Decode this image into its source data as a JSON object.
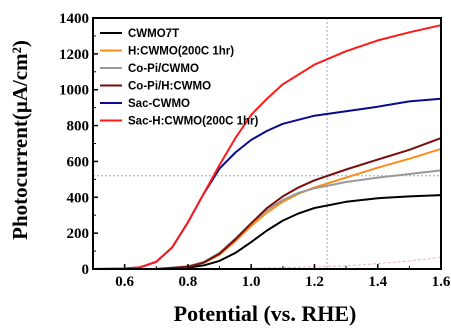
{
  "chart_data": {
    "type": "line",
    "xlabel": "Potential (vs. RHE)",
    "ylabel": "Photocurrent(μA/cm²)",
    "xlim": [
      0.5,
      1.6
    ],
    "ylim": [
      0,
      1400
    ],
    "xticks": [
      0.6,
      0.8,
      1.0,
      1.2,
      1.4,
      1.6
    ],
    "xtick_labels": [
      "0.6",
      "0.8",
      "1.0",
      "1.2",
      "1.4",
      "1.6"
    ],
    "yticks": [
      0,
      200,
      400,
      600,
      800,
      1000,
      1200,
      1400
    ],
    "ytick_labels": [
      "0",
      "200",
      "400",
      "600",
      "800",
      "1000",
      "1200",
      "1400"
    ],
    "grid": false,
    "legend_position": "top-left",
    "series": [
      {
        "name": "CWMO7T",
        "color": "#000000",
        "x": [
          0.5,
          0.6,
          0.7,
          0.8,
          0.85,
          0.9,
          0.95,
          1.0,
          1.05,
          1.1,
          1.15,
          1.2,
          1.3,
          1.4,
          1.5,
          1.6
        ],
        "y": [
          0,
          0,
          0,
          8,
          20,
          45,
          90,
          150,
          215,
          270,
          310,
          340,
          375,
          395,
          405,
          412
        ]
      },
      {
        "name": "H:CWMO(200C 1hr)",
        "color": "#ff8c1a",
        "x": [
          0.5,
          0.6,
          0.7,
          0.8,
          0.85,
          0.9,
          0.95,
          1.0,
          1.05,
          1.1,
          1.15,
          1.2,
          1.3,
          1.4,
          1.5,
          1.6
        ],
        "y": [
          0,
          0,
          0,
          12,
          35,
          80,
          155,
          240,
          315,
          375,
          420,
          455,
          510,
          565,
          615,
          670
        ]
      },
      {
        "name": "Co-Pi/CWMO",
        "color": "#999999",
        "x": [
          0.5,
          0.6,
          0.7,
          0.8,
          0.85,
          0.9,
          0.95,
          1.0,
          1.05,
          1.1,
          1.15,
          1.2,
          1.3,
          1.4,
          1.5,
          1.6
        ],
        "y": [
          0,
          0,
          0,
          15,
          40,
          90,
          170,
          255,
          330,
          385,
          425,
          450,
          485,
          510,
          530,
          550
        ]
      },
      {
        "name": "Co-Pi/H:CWMO",
        "color": "#7a0c0c",
        "x": [
          0.5,
          0.6,
          0.7,
          0.8,
          0.85,
          0.9,
          0.95,
          1.0,
          1.05,
          1.1,
          1.15,
          1.2,
          1.3,
          1.4,
          1.5,
          1.6
        ],
        "y": [
          0,
          0,
          0,
          12,
          35,
          85,
          165,
          255,
          340,
          405,
          455,
          495,
          555,
          610,
          665,
          730
        ]
      },
      {
        "name": "Sac-CWMO",
        "color": "#0a0a8c",
        "x": [
          0.5,
          0.6,
          0.65,
          0.7,
          0.75,
          0.8,
          0.85,
          0.9,
          0.95,
          1.0,
          1.05,
          1.1,
          1.2,
          1.3,
          1.4,
          1.5,
          1.6
        ],
        "y": [
          0,
          2,
          10,
          40,
          120,
          260,
          420,
          560,
          650,
          720,
          770,
          810,
          855,
          880,
          905,
          935,
          950
        ]
      },
      {
        "name": "Sac-H:CWMO(200C 1hr)",
        "color": "#ff1a1a",
        "x": [
          0.5,
          0.6,
          0.65,
          0.7,
          0.75,
          0.8,
          0.85,
          0.9,
          0.95,
          1.0,
          1.05,
          1.1,
          1.2,
          1.3,
          1.4,
          1.5,
          1.6
        ],
        "y": [
          0,
          2,
          10,
          40,
          120,
          260,
          420,
          580,
          730,
          860,
          950,
          1030,
          1140,
          1215,
          1275,
          1320,
          1360
        ]
      },
      {
        "name": "",
        "color": "#f0b0b8",
        "x": [
          0.5,
          0.7,
          0.9,
          1.0,
          1.1,
          1.2,
          1.3,
          1.4,
          1.5,
          1.6
        ],
        "y": [
          0,
          0,
          2,
          4,
          8,
          12,
          18,
          30,
          45,
          65
        ]
      }
    ],
    "annotations": [
      {
        "type": "vline",
        "x": 1.24,
        "color": "#88aadd"
      },
      {
        "type": "hline",
        "y": 520,
        "color": "#88aadd"
      }
    ]
  }
}
